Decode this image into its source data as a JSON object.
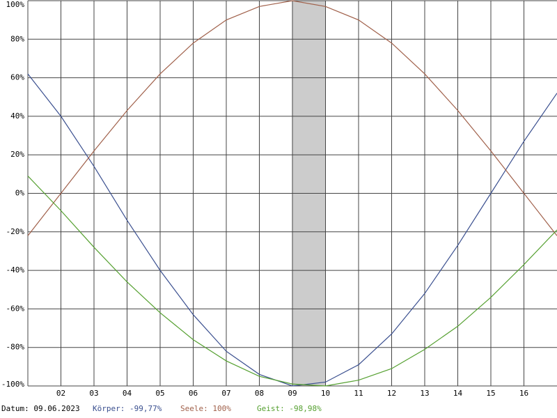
{
  "chart_data": {
    "type": "line",
    "x": [
      1,
      2,
      3,
      4,
      5,
      6,
      7,
      8,
      9,
      10,
      11,
      12,
      13,
      14,
      15,
      16,
      17
    ],
    "series": [
      {
        "color": "#3a4f8f",
        "values": [
          62,
          40,
          14,
          -14,
          -40,
          -63,
          -82,
          -94,
          -100,
          -98,
          -89,
          -73,
          -52,
          -27,
          0,
          27,
          52
        ]
      },
      {
        "color": "#a0604a",
        "values": [
          -22,
          0,
          22,
          43,
          62,
          78,
          90,
          97,
          100,
          97,
          90,
          78,
          62,
          43,
          22,
          0,
          -22
        ]
      },
      {
        "color": "#55a030",
        "values": [
          9,
          -9,
          -28,
          -46,
          -62,
          -76,
          -87,
          -95,
          -99,
          -100,
          -97,
          -91,
          -81,
          -69,
          -54,
          -37,
          -19
        ]
      }
    ],
    "xlim": [
      1,
      17
    ],
    "xticks": [
      {
        "value": 2,
        "label": "02"
      },
      {
        "value": 3,
        "label": "03"
      },
      {
        "value": 4,
        "label": "04"
      },
      {
        "value": 5,
        "label": "05"
      },
      {
        "value": 6,
        "label": "06"
      },
      {
        "value": 7,
        "label": "07"
      },
      {
        "value": 8,
        "label": "08"
      },
      {
        "value": 9,
        "label": "09"
      },
      {
        "value": 10,
        "label": "10"
      },
      {
        "value": 11,
        "label": "11"
      },
      {
        "value": 12,
        "label": "12"
      },
      {
        "value": 13,
        "label": "13"
      },
      {
        "value": 14,
        "label": "14"
      },
      {
        "value": 15,
        "label": "15"
      },
      {
        "value": 16,
        "label": "16"
      }
    ],
    "ylim": [
      -100,
      100
    ],
    "yticks": [
      {
        "value": 100,
        "label": "100%"
      },
      {
        "value": 80,
        "label": "80%"
      },
      {
        "value": 60,
        "label": "60%"
      },
      {
        "value": 40,
        "label": "40%"
      },
      {
        "value": 20,
        "label": "20%"
      },
      {
        "value": 0,
        "label": "0%"
      },
      {
        "value": -20,
        "label": "-20%"
      },
      {
        "value": -40,
        "label": "-40%"
      },
      {
        "value": -60,
        "label": "-60%"
      },
      {
        "value": -80,
        "label": "-80%"
      },
      {
        "value": -100,
        "label": "-100%"
      }
    ],
    "highlight": [
      9,
      10
    ],
    "highlight_color": "#cccccc",
    "grid": true,
    "footer": [
      {
        "text": "Datum: 09.06.2023",
        "color": "#000000"
      },
      {
        "text": "Körper: -99,77%",
        "color": "#3a4f8f"
      },
      {
        "text": "Seele: 100%",
        "color": "#a0604a"
      },
      {
        "text": "Geist: -98,98%",
        "color": "#55a030"
      }
    ]
  }
}
